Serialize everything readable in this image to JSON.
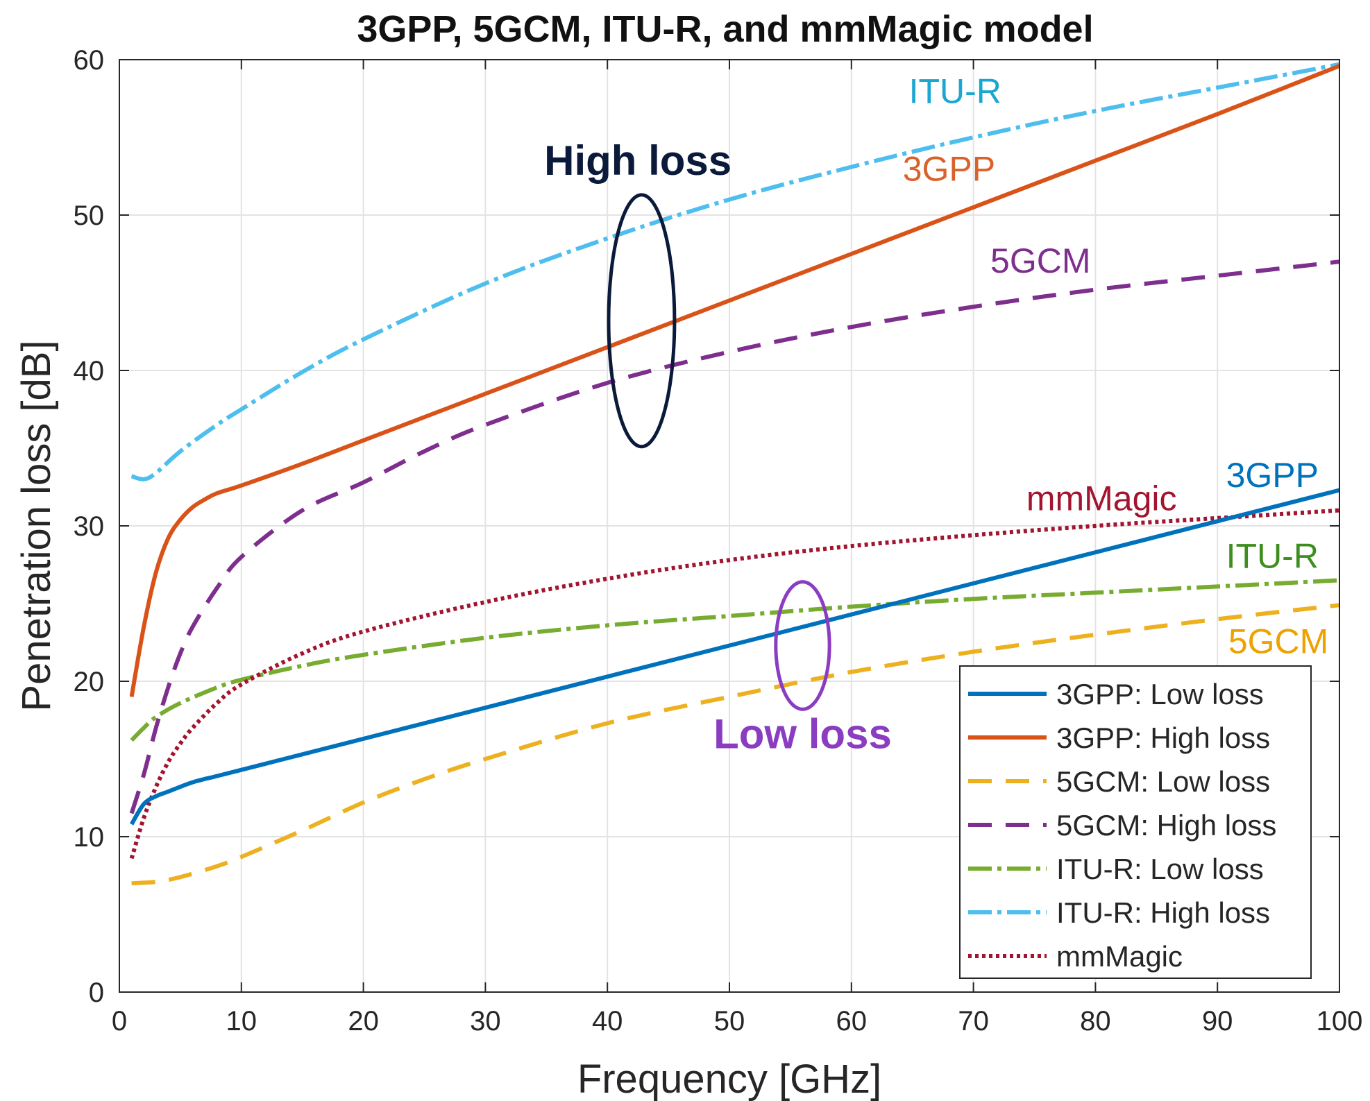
{
  "chart_data": {
    "type": "line",
    "title": "3GPP, 5GCM, ITU-R, and mmMagic model",
    "xlabel": "Frequency [GHz]",
    "ylabel": "Penetration loss [dB]",
    "xlim": [
      0,
      100
    ],
    "ylim": [
      0,
      60
    ],
    "xticks": [
      "0",
      "10",
      "20",
      "30",
      "40",
      "50",
      "60",
      "70",
      "80",
      "90",
      "100"
    ],
    "yticks": [
      "0",
      "10",
      "20",
      "30",
      "40",
      "50",
      "60"
    ],
    "grid": true,
    "legend_position": "bottom-right",
    "series": [
      {
        "name": "3GPP: Low loss",
        "color": "#0072BD",
        "style": "solid",
        "x": [
          1,
          2,
          3,
          4,
          6,
          8,
          10,
          15,
          20,
          30,
          40,
          50,
          60,
          70,
          80,
          90,
          100
        ],
        "y": [
          10.8,
          12.1,
          12.6,
          12.9,
          13.5,
          13.9,
          14.3,
          15.3,
          16.3,
          18.3,
          20.3,
          22.3,
          24.3,
          26.3,
          28.3,
          30.3,
          32.3
        ]
      },
      {
        "name": "3GPP: High loss",
        "color": "#D95319",
        "style": "solid",
        "x": [
          1,
          2,
          3,
          4,
          5,
          6,
          7,
          8,
          10,
          15,
          20,
          30,
          40,
          50,
          60,
          70,
          80,
          90,
          100
        ],
        "y": [
          19.0,
          23.5,
          27.0,
          29.2,
          30.4,
          31.2,
          31.7,
          32.1,
          32.6,
          34.0,
          35.5,
          38.5,
          41.5,
          44.5,
          47.5,
          50.5,
          53.5,
          56.5,
          59.6
        ]
      },
      {
        "name": "5GCM: Low loss",
        "color": "#EDB120",
        "style": "dashed",
        "x": [
          1,
          3,
          5,
          8,
          10,
          15,
          20,
          25,
          30,
          40,
          50,
          60,
          70,
          80,
          90,
          100
        ],
        "y": [
          7.0,
          7.1,
          7.4,
          8.1,
          8.7,
          10.4,
          12.2,
          13.7,
          15.0,
          17.3,
          19.0,
          20.6,
          21.9,
          23.0,
          24.0,
          24.9
        ]
      },
      {
        "name": "5GCM: High loss",
        "color": "#7E2F8E",
        "style": "dashed",
        "x": [
          1,
          2,
          3,
          4,
          5,
          6,
          8,
          10,
          15,
          20,
          25,
          30,
          40,
          50,
          60,
          70,
          80,
          90,
          100
        ],
        "y": [
          11.5,
          14.0,
          17.0,
          19.6,
          21.8,
          23.5,
          26.0,
          28.0,
          31.0,
          32.8,
          34.8,
          36.5,
          39.2,
          41.2,
          42.8,
          44.1,
          45.2,
          46.1,
          47.0
        ]
      },
      {
        "name": "ITU-R: Low loss",
        "color": "#77AC30",
        "style": "dashdot",
        "x": [
          1,
          2,
          3,
          5,
          8,
          10,
          15,
          20,
          30,
          40,
          50,
          60,
          70,
          80,
          90,
          100
        ],
        "y": [
          16.2,
          17.0,
          17.7,
          18.6,
          19.6,
          20.1,
          21.0,
          21.7,
          22.8,
          23.6,
          24.2,
          24.8,
          25.3,
          25.7,
          26.1,
          26.5
        ]
      },
      {
        "name": "ITU-R: High loss",
        "color": "#4DBEEE",
        "style": "dashdot",
        "x": [
          1,
          2,
          3,
          5,
          8,
          10,
          15,
          20,
          30,
          40,
          50,
          60,
          70,
          80,
          90,
          100
        ],
        "y": [
          33.2,
          33.0,
          33.4,
          34.8,
          36.5,
          37.5,
          39.9,
          42.0,
          45.6,
          48.5,
          51.0,
          53.1,
          55.0,
          56.7,
          58.2,
          59.7
        ]
      },
      {
        "name": "mmMagic",
        "color": "#A2142F",
        "style": "dotted",
        "x": [
          1,
          2,
          3,
          4,
          5,
          6,
          8,
          10,
          15,
          20,
          30,
          40,
          50,
          60,
          70,
          80,
          90,
          100
        ],
        "y": [
          8.6,
          11.2,
          13.2,
          14.8,
          16.0,
          17.0,
          18.6,
          19.8,
          21.8,
          23.2,
          25.1,
          26.6,
          27.8,
          28.7,
          29.4,
          30.0,
          30.5,
          31.0
        ]
      }
    ],
    "annotations": [
      {
        "text": "ITU-R",
        "x": 68.5,
        "y": 57.2,
        "color": "#1AA6D2",
        "weight": "normal"
      },
      {
        "text": "3GPP",
        "x": 68.0,
        "y": 52.2,
        "color": "#D9622B",
        "weight": "normal"
      },
      {
        "text": "5GCM",
        "x": 75.5,
        "y": 46.3,
        "color": "#7E2F8E",
        "weight": "normal"
      },
      {
        "text": "High loss",
        "x": 42.5,
        "y": 52.6,
        "color": "#0B1A3A",
        "weight": "bold"
      },
      {
        "text": "3GPP",
        "x": 94.5,
        "y": 32.5,
        "color": "#0072BD",
        "weight": "normal"
      },
      {
        "text": "mmMagic",
        "x": 80.5,
        "y": 31.0,
        "color": "#A2142F",
        "weight": "normal"
      },
      {
        "text": "ITU-R",
        "x": 94.5,
        "y": 27.3,
        "color": "#3E8E1F",
        "weight": "normal"
      },
      {
        "text": "5GCM",
        "x": 95.0,
        "y": 21.8,
        "color": "#EDA200",
        "weight": "normal"
      },
      {
        "text": "Low loss",
        "x": 56.0,
        "y": 15.7,
        "color": "#8A3DC1",
        "weight": "bold"
      }
    ],
    "ellipses": [
      {
        "name": "high-loss-ellipse",
        "cx": 42.8,
        "cy": 43.2,
        "rx": 2.7,
        "ry": 8.1,
        "color": "#0B1A3A"
      },
      {
        "name": "low-loss-ellipse",
        "cx": 56.0,
        "cy": 22.3,
        "rx": 2.2,
        "ry": 4.1,
        "color": "#8A3DC1"
      }
    ]
  }
}
